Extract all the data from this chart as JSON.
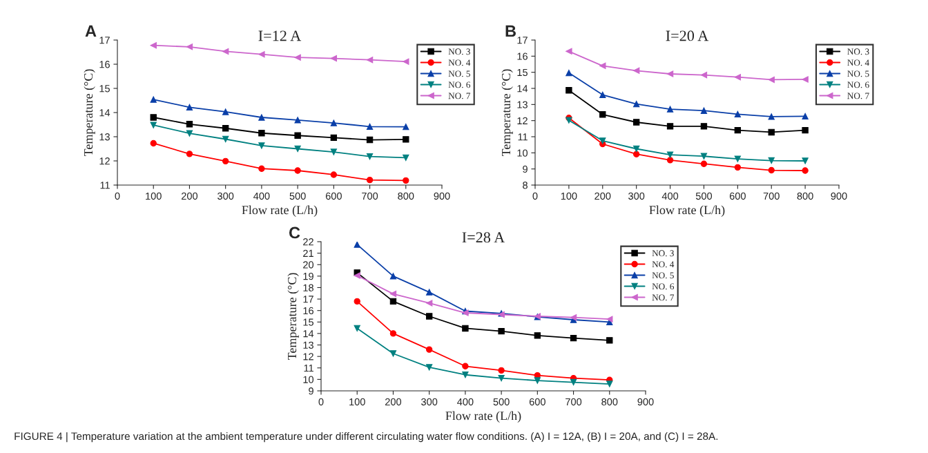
{
  "chart_data": [
    {
      "type": "line",
      "title": "I=12 A",
      "xlabel": "Flow rate (L/h)",
      "ylabel": "Temperature (°C)",
      "annotations": [
        "A"
      ],
      "x": [
        100,
        200,
        300,
        400,
        500,
        600,
        700,
        800
      ],
      "xlim": [
        0,
        900
      ],
      "xticks": [
        0,
        100,
        200,
        300,
        400,
        500,
        600,
        700,
        800,
        900
      ],
      "ylim": [
        11,
        17
      ],
      "yticks": [
        11,
        12,
        13,
        14,
        15,
        16,
        17
      ],
      "grid": false,
      "legend": "top right",
      "series": [
        {
          "name": "NO. 3",
          "color": "#000000",
          "marker": "square",
          "values": [
            13.8,
            13.52,
            13.35,
            13.15,
            13.05,
            12.96,
            12.87,
            12.89
          ]
        },
        {
          "name": "NO. 4",
          "color": "#ff0000",
          "marker": "circle",
          "values": [
            12.73,
            12.29,
            11.99,
            11.68,
            11.6,
            11.43,
            11.21,
            11.19
          ]
        },
        {
          "name": "NO. 5",
          "color": "#0a3fa8",
          "marker": "triangle",
          "values": [
            14.54,
            14.22,
            14.03,
            13.8,
            13.69,
            13.57,
            13.42,
            13.41
          ]
        },
        {
          "name": "NO. 6",
          "color": "#008080",
          "marker": "triangle-down",
          "values": [
            13.48,
            13.14,
            12.9,
            12.63,
            12.5,
            12.37,
            12.18,
            12.13
          ]
        },
        {
          "name": "NO. 7",
          "color": "#cc66cc",
          "marker": "triangle-left",
          "values": [
            16.78,
            16.72,
            16.53,
            16.41,
            16.28,
            16.24,
            16.18,
            16.11
          ]
        }
      ]
    },
    {
      "type": "line",
      "title": "I=20 A",
      "xlabel": "Flow rate (L/h)",
      "ylabel": "Temperature (°C)",
      "annotations": [
        "B"
      ],
      "x": [
        100,
        200,
        300,
        400,
        500,
        600,
        700,
        800
      ],
      "xlim": [
        0,
        900
      ],
      "xticks": [
        0,
        100,
        200,
        300,
        400,
        500,
        600,
        700,
        800,
        900
      ],
      "ylim": [
        8,
        17
      ],
      "yticks": [
        8,
        9,
        10,
        11,
        12,
        13,
        14,
        15,
        16,
        17
      ],
      "grid": false,
      "legend": "top right",
      "series": [
        {
          "name": "NO. 3",
          "color": "#000000",
          "marker": "square",
          "values": [
            13.88,
            12.38,
            11.9,
            11.65,
            11.65,
            11.4,
            11.28,
            11.4
          ]
        },
        {
          "name": "NO. 4",
          "color": "#ff0000",
          "marker": "circle",
          "values": [
            12.17,
            10.55,
            9.92,
            9.55,
            9.32,
            9.1,
            8.92,
            8.9
          ]
        },
        {
          "name": "NO. 5",
          "color": "#0a3fa8",
          "marker": "triangle",
          "values": [
            14.96,
            13.6,
            13.03,
            12.71,
            12.62,
            12.4,
            12.25,
            12.27
          ]
        },
        {
          "name": "NO. 6",
          "color": "#008080",
          "marker": "triangle-down",
          "values": [
            12.02,
            10.75,
            10.25,
            9.88,
            9.79,
            9.62,
            9.52,
            9.5
          ]
        },
        {
          "name": "NO. 7",
          "color": "#cc66cc",
          "marker": "triangle-left",
          "values": [
            16.3,
            15.4,
            15.1,
            14.9,
            14.83,
            14.7,
            14.54,
            14.56
          ]
        }
      ]
    },
    {
      "type": "line",
      "title": "I=28 A",
      "xlabel": "Flow rate (L/h)",
      "ylabel": "Temperature (°C)",
      "annotations": [
        "C",
        "FIGURE 4 | Temperature variation at the ambient temperature under different circulating water flow conditions. (A) I = 12A, (B) I = 20A, and (C) I = 28A."
      ],
      "x": [
        100,
        200,
        300,
        400,
        500,
        600,
        700,
        800
      ],
      "xlim": [
        0,
        900
      ],
      "xticks": [
        0,
        100,
        200,
        300,
        400,
        500,
        600,
        700,
        800,
        900
      ],
      "ylim": [
        9,
        22
      ],
      "yticks": [
        9,
        10,
        11,
        12,
        13,
        14,
        15,
        16,
        17,
        18,
        19,
        20,
        21,
        22
      ],
      "grid": false,
      "legend": "top right",
      "series": [
        {
          "name": "NO. 3",
          "color": "#000000",
          "marker": "square",
          "values": [
            19.3,
            16.8,
            15.5,
            14.45,
            14.2,
            13.82,
            13.6,
            13.4
          ]
        },
        {
          "name": "NO. 4",
          "color": "#ff0000",
          "marker": "circle",
          "values": [
            16.8,
            14.0,
            12.6,
            11.15,
            10.78,
            10.35,
            10.1,
            9.95
          ]
        },
        {
          "name": "NO. 5",
          "color": "#0a3fa8",
          "marker": "triangle",
          "values": [
            21.75,
            19.0,
            17.6,
            15.95,
            15.75,
            15.45,
            15.2,
            15.0
          ]
        },
        {
          "name": "NO. 6",
          "color": "#008080",
          "marker": "triangle-down",
          "values": [
            14.45,
            12.25,
            11.05,
            10.4,
            10.1,
            9.9,
            9.75,
            9.6
          ]
        },
        {
          "name": "NO. 7",
          "color": "#cc66cc",
          "marker": "triangle-left",
          "values": [
            19.05,
            17.45,
            16.65,
            15.8,
            15.65,
            15.5,
            15.4,
            15.25
          ]
        }
      ]
    }
  ]
}
